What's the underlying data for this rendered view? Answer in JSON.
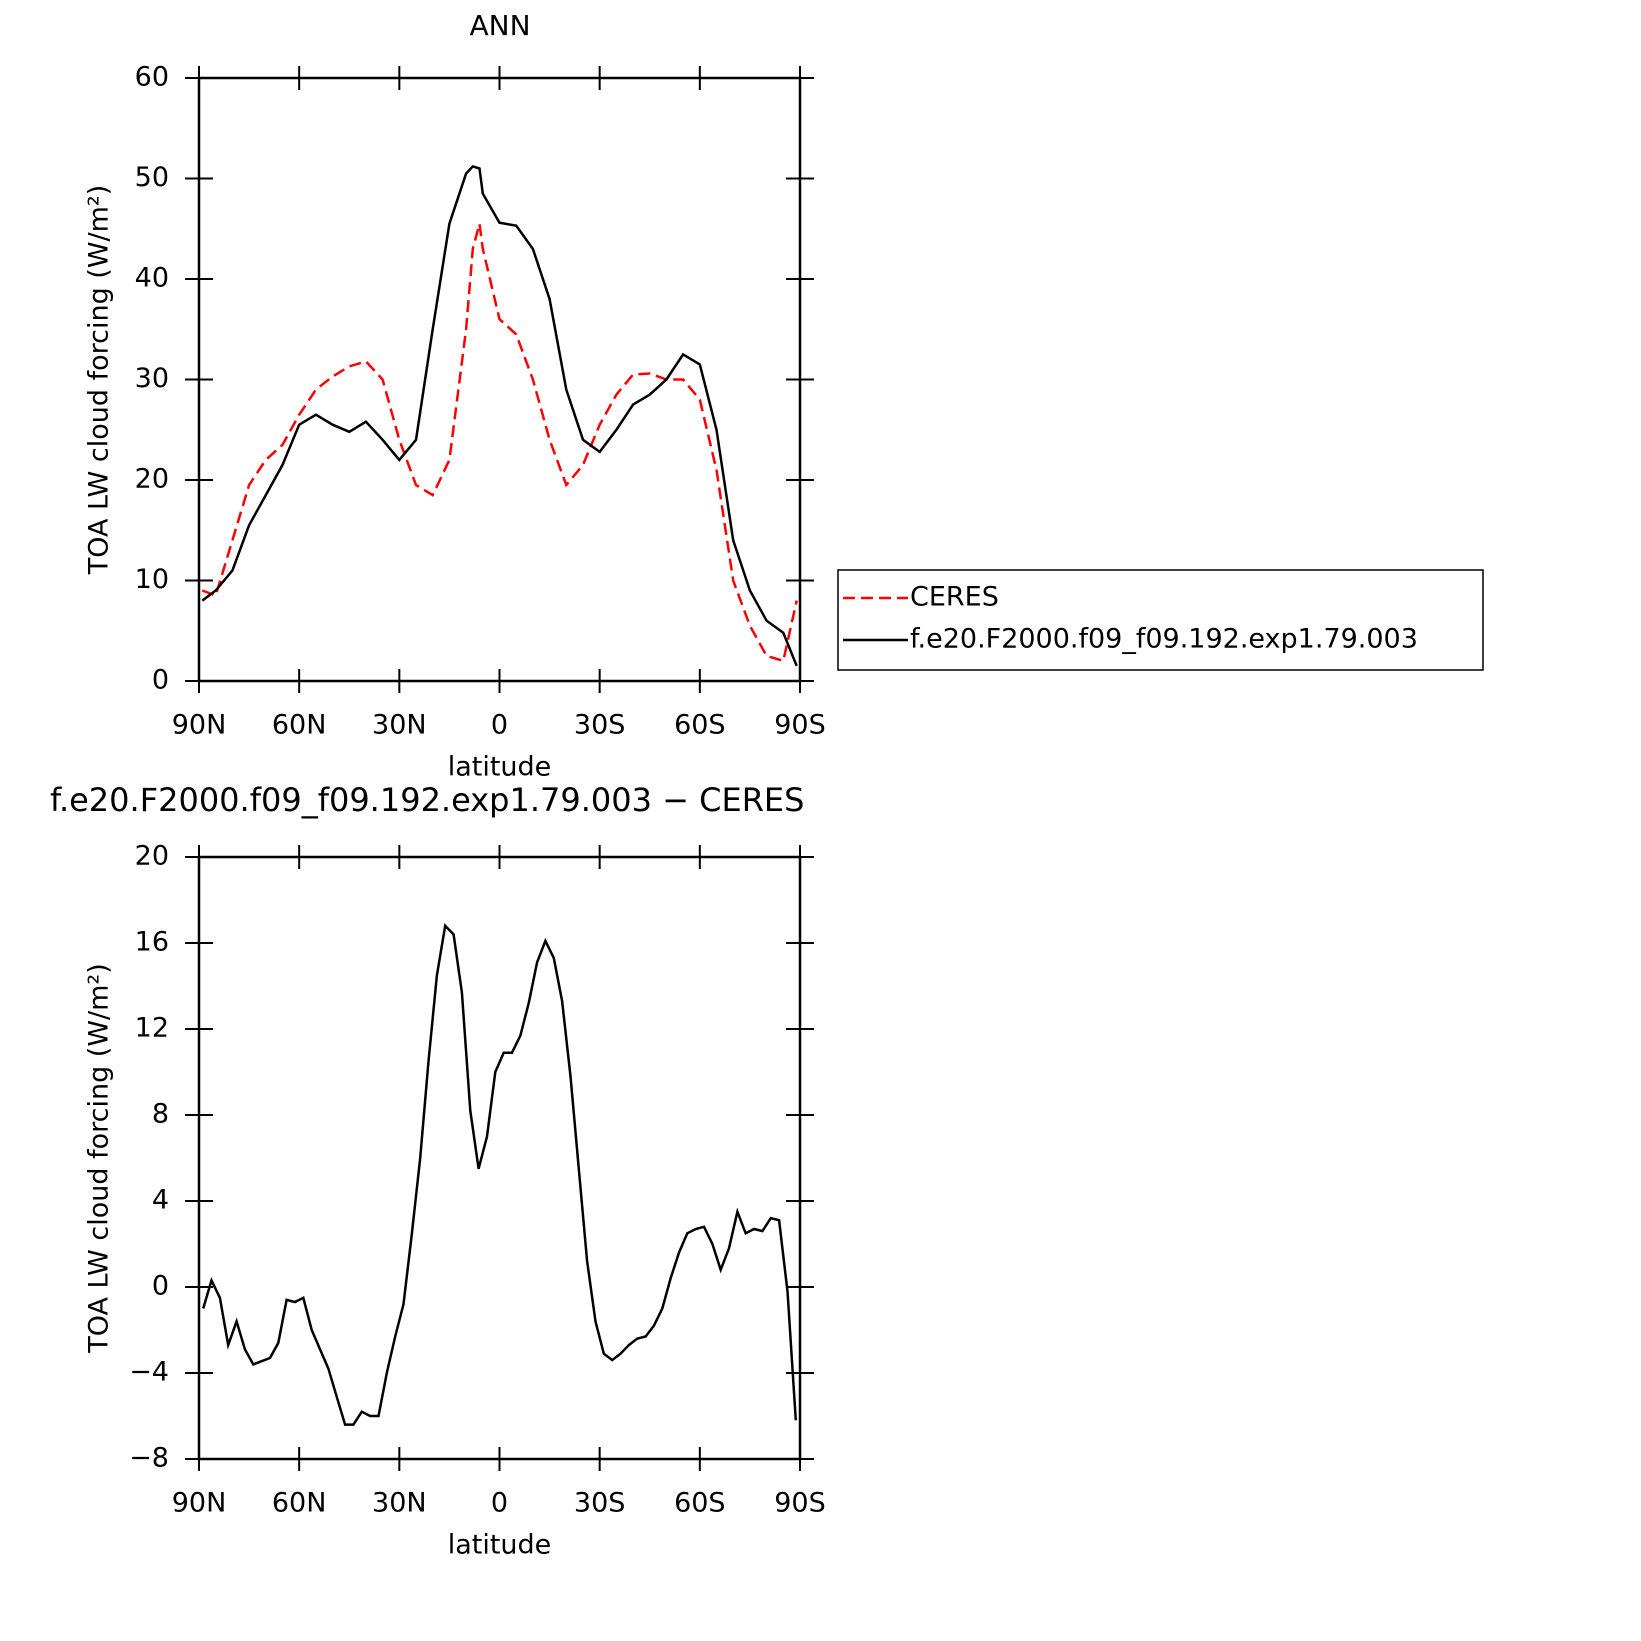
{
  "chart_data": [
    {
      "type": "line",
      "title": "ANN",
      "xlabel": "latitude",
      "ylabel": "TOA LW cloud forcing (W/m²)",
      "xlim": [
        90,
        -90
      ],
      "xticks": [
        {
          "value": 90,
          "label": "90N"
        },
        {
          "value": 60,
          "label": "60N"
        },
        {
          "value": 30,
          "label": "30N"
        },
        0,
        {
          "value": -30,
          "label": "30S"
        },
        {
          "value": -60,
          "label": "60S"
        },
        {
          "value": -90,
          "label": "90S"
        }
      ],
      "ylim": [
        0,
        60
      ],
      "yticks": [
        0,
        10,
        20,
        30,
        40,
        50,
        60
      ],
      "legend": "right",
      "x": [
        89,
        85,
        80,
        75,
        70,
        65,
        60,
        55,
        50,
        45,
        40,
        35,
        30,
        25,
        20,
        15,
        10,
        8,
        6,
        5,
        0,
        -5,
        -10,
        -15,
        -20,
        -25,
        -30,
        -35,
        -40,
        -45,
        -50,
        -55,
        -60,
        -65,
        -70,
        -75,
        -80,
        -85,
        -89
      ],
      "series": [
        {
          "name": "CERES",
          "color": "#ff0000",
          "style": "dashed",
          "values": [
            9,
            8.5,
            14,
            19.5,
            22,
            23.5,
            26.5,
            29,
            30.3,
            31.3,
            31.8,
            30,
            24,
            19.5,
            18.5,
            22,
            35,
            43,
            45.5,
            43,
            36,
            34.5,
            30,
            24,
            19.5,
            21.5,
            25.5,
            28.5,
            30.5,
            30.6,
            30,
            30,
            28,
            21,
            10,
            5.5,
            2.5,
            2,
            8
          ]
        },
        {
          "name": "f.e20.F2000.f09_f09.192.exp1.79.003",
          "color": "#000000",
          "style": "solid",
          "values": [
            8,
            9,
            11,
            15.5,
            18.5,
            21.5,
            25.5,
            26.5,
            25.5,
            24.8,
            25.8,
            24,
            22,
            24,
            35,
            45.5,
            50.5,
            51.2,
            51,
            48.5,
            45.6,
            45.3,
            43,
            38,
            29,
            24,
            22.8,
            25,
            27.5,
            28.5,
            30,
            32.5,
            31.5,
            25,
            14,
            9,
            6,
            4.8,
            1.5
          ]
        }
      ]
    },
    {
      "type": "line",
      "title": "f.e20.F2000.f09_f09.192.exp1.79.003 − CERES",
      "xlabel": "latitude",
      "ylabel": "TOA LW cloud forcing (W/m²)",
      "xlim": [
        90,
        -90
      ],
      "xticks": [
        {
          "value": 90,
          "label": "90N"
        },
        {
          "value": 60,
          "label": "60N"
        },
        {
          "value": 30,
          "label": "30N"
        },
        0,
        {
          "value": -30,
          "label": "30S"
        },
        {
          "value": -60,
          "label": "60S"
        },
        {
          "value": -90,
          "label": "90S"
        }
      ],
      "ylim": [
        -8,
        20
      ],
      "yticks": [
        {
          "value": -8,
          "label": "−8"
        },
        {
          "value": -4,
          "label": "−4"
        },
        0,
        4,
        8,
        12,
        16,
        20
      ],
      "color": "#000000",
      "x": [
        88.75,
        86.25,
        83.75,
        81.25,
        78.75,
        76.25,
        73.75,
        71.25,
        68.75,
        66.25,
        63.75,
        61.25,
        58.75,
        56.25,
        53.75,
        51.25,
        48.75,
        46.25,
        43.75,
        41.25,
        38.75,
        36.25,
        33.75,
        31.25,
        28.75,
        26.25,
        23.75,
        21.25,
        18.75,
        16.25,
        13.75,
        11.25,
        8.75,
        6.25,
        3.75,
        1.25,
        -1.25,
        -3.75,
        -6.25,
        -8.75,
        -11.25,
        -13.75,
        -16.25,
        -18.75,
        -21.25,
        -23.75,
        -26.25,
        -28.75,
        -31.25,
        -33.75,
        -36.25,
        -38.75,
        -41.25,
        -43.75,
        -46.25,
        -48.75,
        -51.25,
        -53.75,
        -56.25,
        -58.75,
        -61.25,
        -63.75,
        -66.25,
        -68.75,
        -71.25,
        -73.75,
        -76.25,
        -78.75,
        -81.25,
        -83.75,
        -86.25,
        -88.75
      ],
      "values": [
        -1,
        0.3,
        -0.5,
        -2.7,
        -1.6,
        -2.9,
        -3.6,
        -3.45,
        -3.3,
        -2.6,
        -0.6,
        -0.7,
        -0.5,
        -2,
        -2.9,
        -3.8,
        -5.1,
        -6.4,
        -6.4,
        -5.8,
        -6,
        -6,
        -4,
        -2.3,
        -0.8,
        2.5,
        6,
        10.5,
        14.5,
        16.8,
        16.4,
        13.7,
        8.2,
        5.5,
        7,
        10,
        10.9,
        10.9,
        11.7,
        13.2,
        15.1,
        16.1,
        15.3,
        13.3,
        9.8,
        5.5,
        1.2,
        -1.6,
        -3.1,
        -3.4,
        -3.1,
        -2.7,
        -2.4,
        -2.3,
        -1.8,
        -1,
        0.4,
        1.6,
        2.5,
        2.7,
        2.8,
        2,
        0.8,
        1.8,
        3.5,
        2.5,
        2.7,
        2.6,
        3.2,
        3.1,
        -0.2,
        -6.2
      ]
    }
  ]
}
